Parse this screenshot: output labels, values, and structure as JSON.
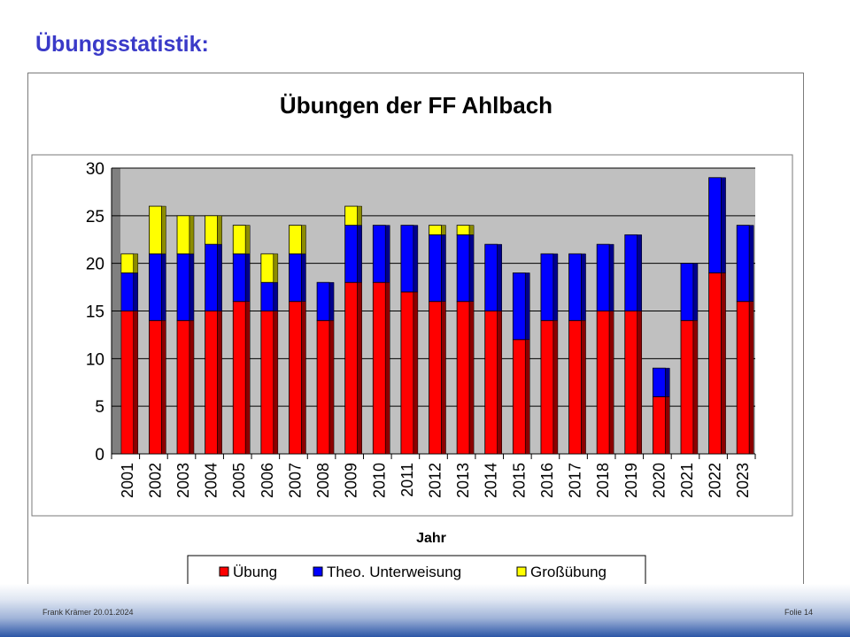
{
  "slide": {
    "title": "Übungsstatistik:",
    "footer_left": "Frank Krämer 20.01.2024",
    "footer_right": "Folie 14"
  },
  "chart_data": {
    "type": "bar",
    "stacked": true,
    "title": "Übungen der FF Ahlbach",
    "xlabel": "Jahr",
    "ylabel": "",
    "ylim": [
      0,
      30
    ],
    "yticks": [
      0,
      5,
      10,
      15,
      20,
      25,
      30
    ],
    "grid": true,
    "legend_position": "bottom",
    "categories": [
      "2001",
      "2002",
      "2003",
      "2004",
      "2005",
      "2006",
      "2007",
      "2008",
      "2009",
      "2010",
      "2011",
      "2012",
      "2013",
      "2014",
      "2015",
      "2016",
      "2017",
      "2018",
      "2019",
      "2020",
      "2021",
      "2022",
      "2023"
    ],
    "series": [
      {
        "name": "Übung",
        "color": "#ff0000",
        "values": [
          15,
          14,
          14,
          15,
          16,
          15,
          16,
          14,
          18,
          18,
          17,
          16,
          16,
          15,
          12,
          14,
          14,
          15,
          15,
          6,
          14,
          19,
          16
        ]
      },
      {
        "name": "Theo. Unterweisung",
        "color": "#0000ff",
        "values": [
          4,
          7,
          7,
          7,
          5,
          3,
          5,
          4,
          6,
          6,
          7,
          7,
          7,
          7,
          7,
          7,
          7,
          7,
          8,
          3,
          6,
          10,
          8
        ]
      },
      {
        "name": "Großübung",
        "color": "#ffff00",
        "values": [
          2,
          5,
          4,
          3,
          3,
          3,
          3,
          0,
          2,
          0,
          0,
          1,
          1,
          0,
          0,
          0,
          0,
          0,
          0,
          0,
          0,
          0,
          0
        ]
      }
    ],
    "colors": {
      "plot_background": "#c0c0c0",
      "grid": "#000000",
      "wall_left": "#808080"
    }
  }
}
